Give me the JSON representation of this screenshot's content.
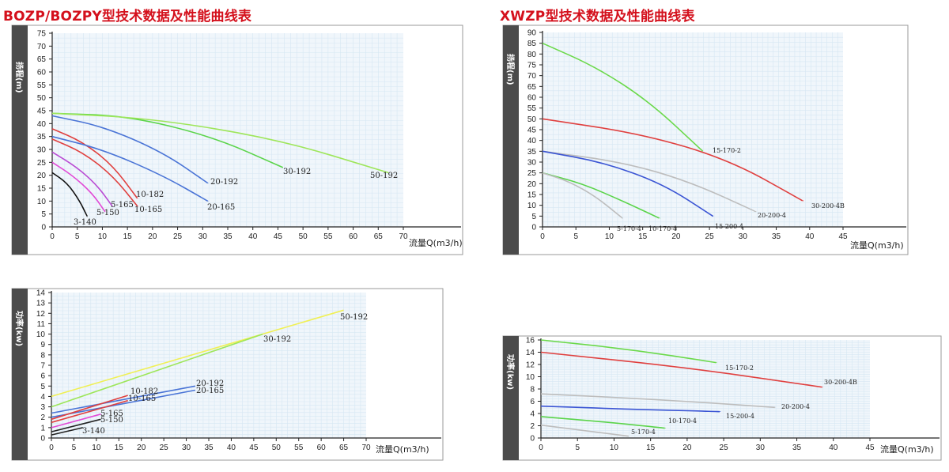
{
  "titles": {
    "left": "BOZP/BOZPY型技术数据及性能曲线表",
    "right": "XWZP型技术数据及性能曲线表"
  },
  "chart_data": [
    {
      "id": "bozp-head",
      "type": "line",
      "xlabel": "流量Q(m3/h)",
      "ylabel": "扬程(m)",
      "xlim": [
        0,
        70
      ],
      "ylim": [
        0,
        75
      ],
      "xticks": [
        0,
        5,
        10,
        15,
        20,
        25,
        30,
        35,
        40,
        45,
        50,
        55,
        60,
        65,
        70
      ],
      "yticks": [
        0,
        5,
        10,
        15,
        20,
        25,
        30,
        35,
        40,
        45,
        50,
        55,
        60,
        65,
        70,
        75
      ],
      "grid": true,
      "series": [
        {
          "name": "3-140",
          "color": "#111111",
          "points": [
            [
              0,
              21
            ],
            [
              3,
              17
            ],
            [
              5.5,
              10
            ],
            [
              7,
              4
            ]
          ]
        },
        {
          "name": "5-150",
          "color": "#e14ad6",
          "points": [
            [
              0,
              25
            ],
            [
              4,
              20
            ],
            [
              8,
              13
            ],
            [
              10.5,
              6
            ]
          ]
        },
        {
          "name": "5-165",
          "color": "#b94bd3",
          "points": [
            [
              0,
              29
            ],
            [
              5,
              23
            ],
            [
              9,
              16
            ],
            [
              12,
              8
            ]
          ]
        },
        {
          "name": "10-182",
          "color": "#e0403f",
          "points": [
            [
              0,
              38
            ],
            [
              6,
              33
            ],
            [
              12,
              24
            ],
            [
              17,
              11
            ]
          ]
        },
        {
          "name": "10-165",
          "color": "#e0403f",
          "points": [
            [
              0,
              34
            ],
            [
              6,
              29
            ],
            [
              12,
              20
            ],
            [
              17,
              8
            ]
          ]
        },
        {
          "name": "20-192",
          "color": "#4a74d6",
          "points": [
            [
              0,
              43
            ],
            [
              10,
              39
            ],
            [
              22,
              29
            ],
            [
              31,
              17
            ]
          ]
        },
        {
          "name": "20-165",
          "color": "#4a74d6",
          "points": [
            [
              0,
              35
            ],
            [
              10,
              30
            ],
            [
              22,
              20
            ],
            [
              31,
              10
            ]
          ]
        },
        {
          "name": "30-192",
          "color": "#5bd44a",
          "points": [
            [
              0,
              44
            ],
            [
              15,
              43
            ],
            [
              32,
              35
            ],
            [
              46,
              23
            ]
          ]
        },
        {
          "name": "50-192",
          "color": "#9ee65a",
          "points": [
            [
              0,
              44
            ],
            [
              20,
              42
            ],
            [
              45,
              34
            ],
            [
              67,
              21
            ]
          ]
        }
      ]
    },
    {
      "id": "xwzp-head",
      "type": "line",
      "xlabel": "流量Q(m3/h)",
      "ylabel": "扬程(m)",
      "xlim": [
        0,
        45
      ],
      "ylim": [
        0,
        90
      ],
      "xticks": [
        0,
        5,
        10,
        15,
        20,
        25,
        30,
        35,
        40,
        45
      ],
      "yticks": [
        0,
        5,
        10,
        15,
        20,
        25,
        30,
        35,
        40,
        45,
        50,
        55,
        60,
        65,
        70,
        75,
        80,
        85,
        90
      ],
      "grid": true,
      "series": [
        {
          "name": "15-170-2",
          "color": "#6bd94a",
          "points": [
            [
              0,
              85
            ],
            [
              8,
              74
            ],
            [
              16,
              58
            ],
            [
              24,
              35
            ]
          ]
        },
        {
          "name": "30-200-4B",
          "color": "#e0403f",
          "points": [
            [
              0,
              50
            ],
            [
              15,
              43
            ],
            [
              28,
              31
            ],
            [
              39,
              12
            ]
          ]
        },
        {
          "name": "20-200-4",
          "color": "#bdbdbd",
          "points": [
            [
              0,
              35
            ],
            [
              12,
              30
            ],
            [
              22,
              21
            ],
            [
              32,
              7
            ]
          ]
        },
        {
          "name": "15-200-4",
          "color": "#3b55d4",
          "points": [
            [
              0,
              35
            ],
            [
              9,
              30
            ],
            [
              18,
              20
            ],
            [
              25.5,
              5
            ]
          ]
        },
        {
          "name": "10-170-4",
          "color": "#5bd44a",
          "points": [
            [
              0,
              25
            ],
            [
              6,
              20
            ],
            [
              12,
              12
            ],
            [
              17.5,
              4
            ]
          ]
        },
        {
          "name": "5-170-4",
          "color": "#bdbdbd",
          "points": [
            [
              0,
              25
            ],
            [
              4,
              21
            ],
            [
              8,
              14
            ],
            [
              12,
              4
            ]
          ]
        }
      ]
    },
    {
      "id": "bozp-power",
      "type": "line",
      "xlabel": "流量Q(m3/h)",
      "ylabel": "功率(kw)",
      "xlim": [
        0,
        70
      ],
      "ylim": [
        0,
        14
      ],
      "xticks": [
        0,
        5,
        10,
        15,
        20,
        25,
        30,
        35,
        40,
        45,
        50,
        55,
        60,
        65,
        70
      ],
      "yticks": [
        0,
        1,
        2,
        3,
        4,
        5,
        6,
        7,
        8,
        9,
        10,
        11,
        12,
        13,
        14
      ],
      "grid": true,
      "series": [
        {
          "name": "50-192",
          "color": "#f0f055",
          "points": [
            [
              0,
              4
            ],
            [
              65,
              12.3
            ]
          ]
        },
        {
          "name": "30-192",
          "color": "#9ee65a",
          "points": [
            [
              0,
              3
            ],
            [
              47,
              10
            ]
          ]
        },
        {
          "name": "20-192",
          "color": "#4a74d6",
          "points": [
            [
              0,
              2.4
            ],
            [
              32,
              5
            ]
          ]
        },
        {
          "name": "20-165",
          "color": "#4a74d6",
          "points": [
            [
              0,
              2
            ],
            [
              32,
              4.6
            ]
          ]
        },
        {
          "name": "10-182",
          "color": "#e0403f",
          "points": [
            [
              0,
              1.8
            ],
            [
              17,
              4.1
            ]
          ]
        },
        {
          "name": "10-165",
          "color": "#e0403f",
          "points": [
            [
              0,
              1.5
            ],
            [
              17,
              3.6
            ]
          ]
        },
        {
          "name": "5-165",
          "color": "#e14ad6",
          "points": [
            [
              0,
              1
            ],
            [
              11,
              2.3
            ]
          ]
        },
        {
          "name": "5-150",
          "color": "#222222",
          "points": [
            [
              0,
              0.6
            ],
            [
              11,
              1.8
            ]
          ]
        },
        {
          "name": "3-140",
          "color": "#222222",
          "points": [
            [
              0,
              0.3
            ],
            [
              7,
              1
            ]
          ]
        }
      ]
    },
    {
      "id": "xwzp-power",
      "type": "line",
      "xlabel": "流量Q(m3/h)",
      "ylabel": "功率(kw)",
      "xlim": [
        0,
        45
      ],
      "ylim": [
        0,
        16
      ],
      "xticks": [
        0,
        5,
        10,
        15,
        20,
        25,
        30,
        35,
        40,
        45
      ],
      "yticks": [
        0,
        2,
        4,
        6,
        8,
        10,
        12,
        14,
        16
      ],
      "grid": true,
      "series": [
        {
          "name": "15-170-2",
          "color": "#6bd94a",
          "points": [
            [
              0,
              16
            ],
            [
              12,
              14.5
            ],
            [
              24,
              12.3
            ]
          ]
        },
        {
          "name": "30-200-4B",
          "color": "#e0403f",
          "points": [
            [
              0,
              14
            ],
            [
              20,
              11.5
            ],
            [
              38.5,
              8.3
            ]
          ]
        },
        {
          "name": "20-200-4",
          "color": "#bdbdbd",
          "points": [
            [
              0,
              7.2
            ],
            [
              16,
              6.3
            ],
            [
              32,
              5
            ]
          ]
        },
        {
          "name": "15-200-4",
          "color": "#3b55d4",
          "points": [
            [
              0,
              5.2
            ],
            [
              12,
              4.7
            ],
            [
              24.5,
              4.3
            ]
          ]
        },
        {
          "name": "10-170-4",
          "color": "#5bd44a",
          "points": [
            [
              0,
              3.5
            ],
            [
              9,
              2.6
            ],
            [
              17,
              1.6
            ]
          ]
        },
        {
          "name": "5-170-4",
          "color": "#bdbdbd",
          "points": [
            [
              0,
              2.1
            ],
            [
              6,
              1.2
            ],
            [
              12,
              0.3
            ]
          ]
        }
      ]
    }
  ]
}
